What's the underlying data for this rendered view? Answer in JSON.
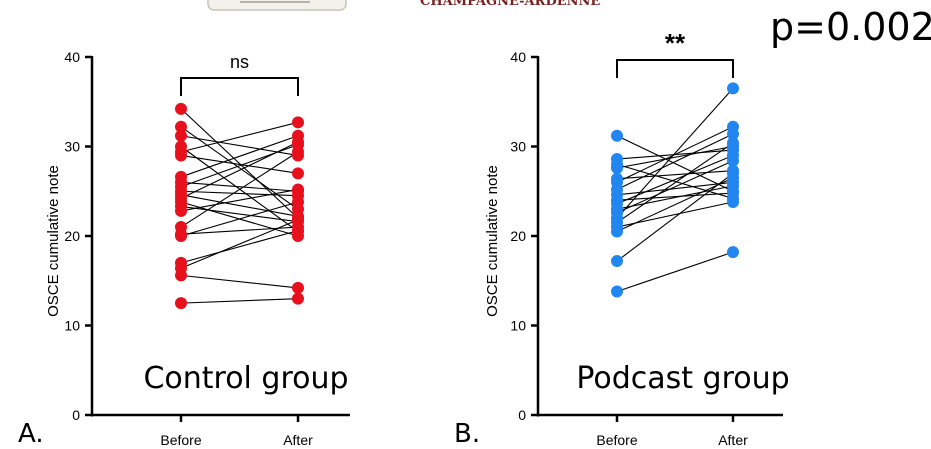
{
  "header": {
    "banner_text": "CHAMPAGNE-ARDENNE",
    "p_value": "p=0.002"
  },
  "colors": {
    "control": "#e8101c",
    "podcast": "#2286f0",
    "lines": "#000000",
    "banner": "#7a1f1f"
  },
  "chart_data": [
    {
      "type": "scatter",
      "panel_label": "A.",
      "group_label": "Control group",
      "ylabel": "OSCE cumulative note",
      "categories": [
        "Before",
        "After"
      ],
      "ylim": [
        0,
        40
      ],
      "yticks": [
        0,
        10,
        20,
        30,
        40
      ],
      "significance": "ns",
      "grid": false,
      "marker_color": "#e8101c",
      "pairs": [
        [
          34.2,
          22.0
        ],
        [
          32.2,
          23.0
        ],
        [
          31.2,
          29.0
        ],
        [
          30.0,
          20.5
        ],
        [
          29.4,
          32.7
        ],
        [
          29.0,
          27.0
        ],
        [
          26.6,
          31.2
        ],
        [
          26.0,
          25.0
        ],
        [
          25.5,
          30.2
        ],
        [
          25.0,
          24.5
        ],
        [
          24.6,
          22.2
        ],
        [
          24.2,
          30.5
        ],
        [
          23.8,
          20.0
        ],
        [
          23.3,
          21.6
        ],
        [
          22.8,
          25.2
        ],
        [
          21.0,
          29.4
        ],
        [
          20.2,
          21.0
        ],
        [
          20.0,
          23.8
        ],
        [
          17.0,
          20.6
        ],
        [
          16.4,
          21.8
        ],
        [
          15.6,
          14.2
        ],
        [
          12.5,
          13.0
        ]
      ]
    },
    {
      "type": "scatter",
      "panel_label": "B.",
      "group_label": "Podcast group",
      "ylabel": "OSCE cumulative note",
      "categories": [
        "Before",
        "After"
      ],
      "ylim": [
        0,
        40
      ],
      "yticks": [
        0,
        10,
        20,
        30,
        40
      ],
      "significance": "**",
      "grid": false,
      "marker_color": "#2286f0",
      "pairs": [
        [
          31.2,
          25.0
        ],
        [
          28.6,
          29.6
        ],
        [
          28.0,
          24.2
        ],
        [
          27.6,
          30.0
        ],
        [
          26.4,
          27.3
        ],
        [
          26.0,
          32.2
        ],
        [
          25.2,
          31.4
        ],
        [
          24.6,
          26.0
        ],
        [
          24.0,
          24.8
        ],
        [
          23.6,
          29.0
        ],
        [
          23.0,
          25.6
        ],
        [
          22.6,
          28.4
        ],
        [
          22.0,
          36.5
        ],
        [
          21.5,
          30.4
        ],
        [
          21.0,
          23.8
        ],
        [
          20.5,
          26.5
        ],
        [
          17.2,
          27.0
        ],
        [
          13.8,
          18.2
        ]
      ]
    }
  ]
}
